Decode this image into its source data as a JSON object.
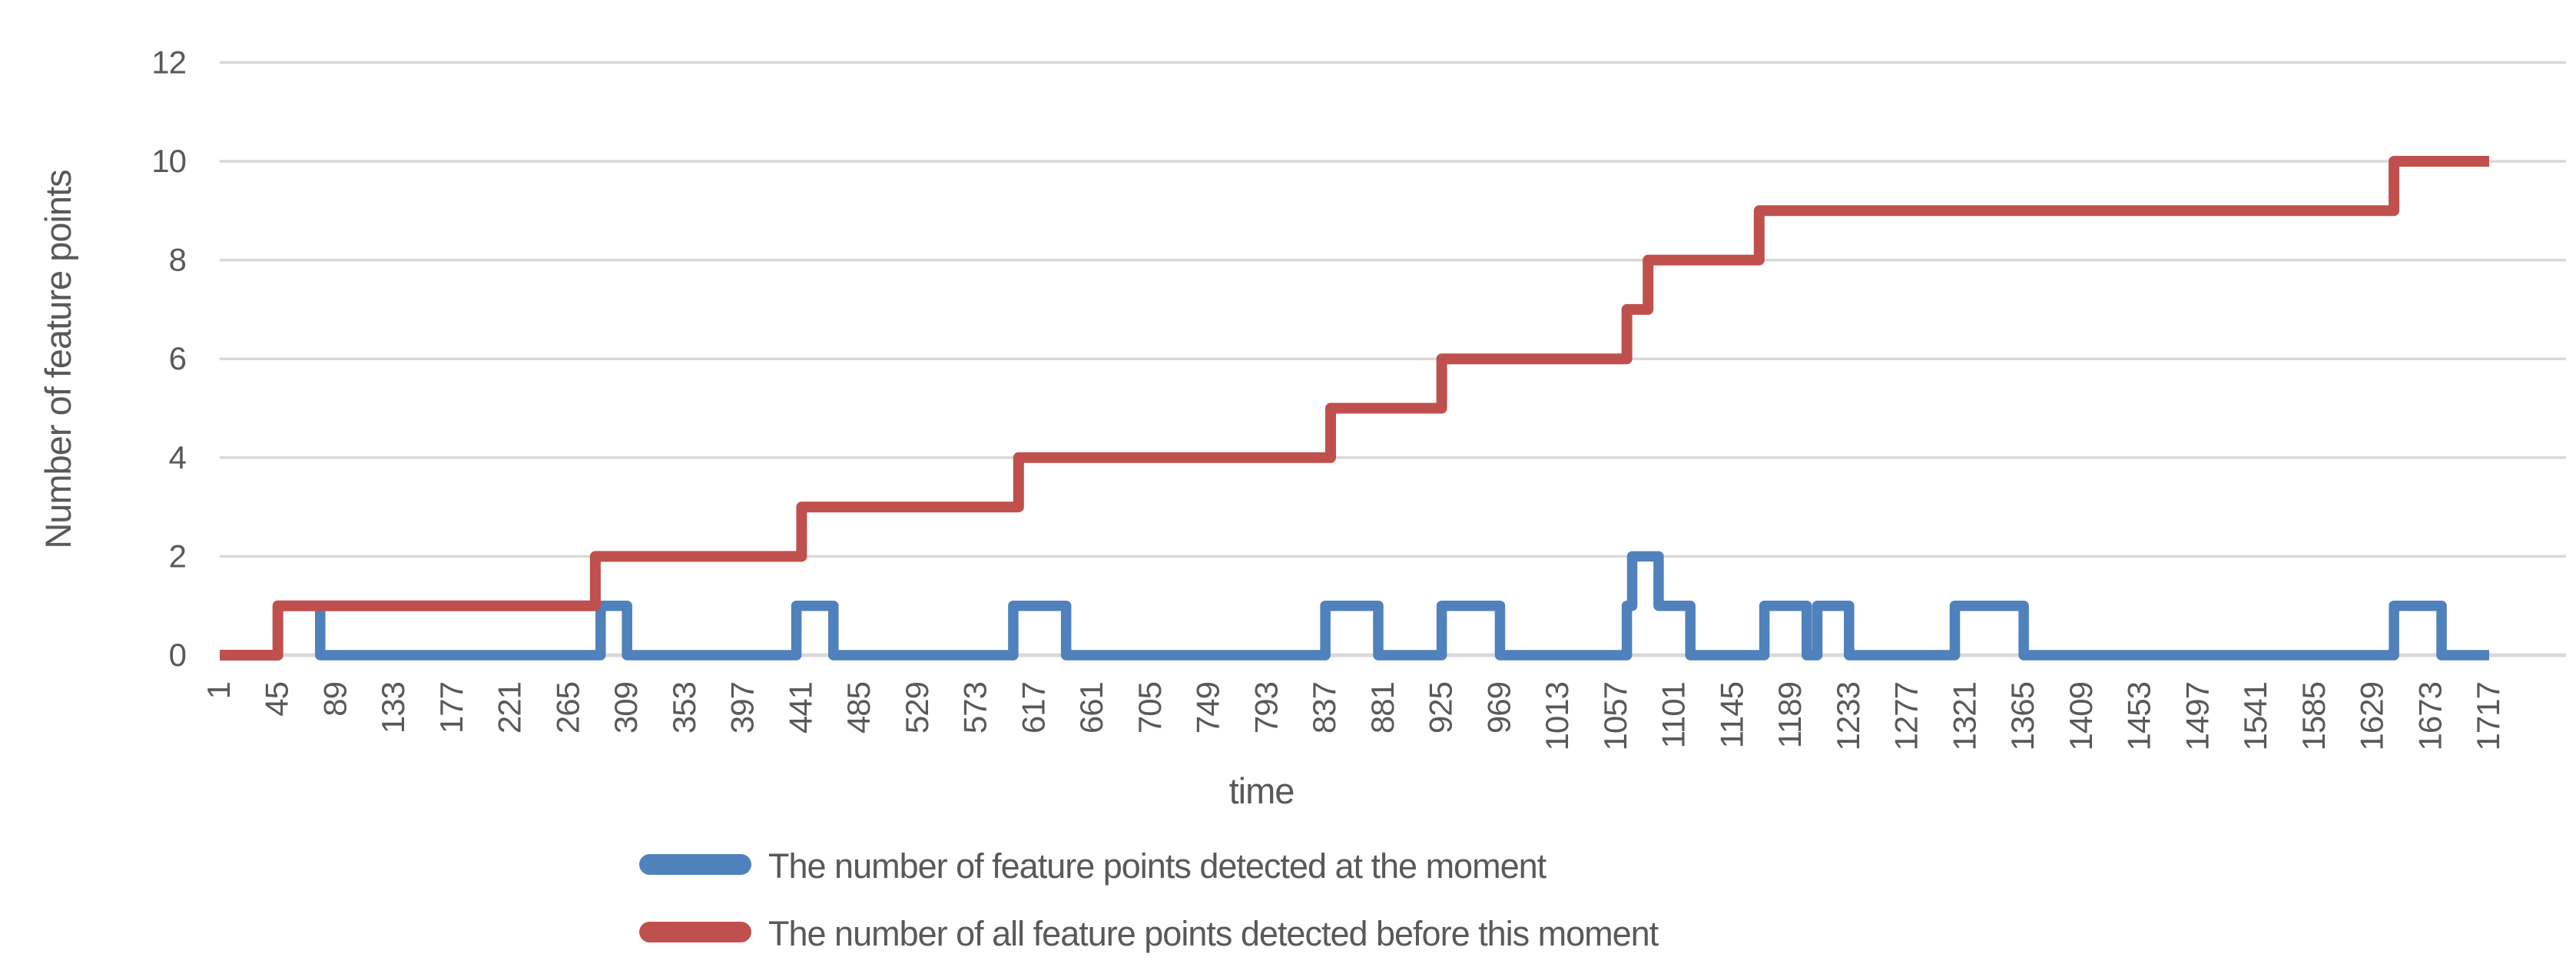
{
  "chart_data": {
    "type": "line",
    "title": "",
    "xlabel": "time",
    "ylabel": "Number of feature points",
    "xlim": [
      1,
      1717
    ],
    "ylim": [
      0,
      12
    ],
    "grid": true,
    "legend_position": "bottom-left",
    "x_tick_step": 44,
    "x_tick_labels": [
      "1",
      "45",
      "89",
      "133",
      "177",
      "221",
      "265",
      "309",
      "353",
      "397",
      "441",
      "485",
      "529",
      "573",
      "617",
      "661",
      "705",
      "749",
      "793",
      "837",
      "881",
      "925",
      "969",
      "1013",
      "1057",
      "1101",
      "1145",
      "1189",
      "1233",
      "1277",
      "1321",
      "1365",
      "1409",
      "1453",
      "1497",
      "1541",
      "1585",
      "1629",
      "1673",
      "1717"
    ],
    "y_ticks": [
      0,
      2,
      4,
      6,
      8,
      10,
      12
    ],
    "series": [
      {
        "name": "The number of feature points detected at the moment",
        "color": "#4F81BD",
        "style": "step-after",
        "points": [
          [
            1,
            0
          ],
          [
            45,
            1
          ],
          [
            77,
            0
          ],
          [
            289,
            1
          ],
          [
            309,
            0
          ],
          [
            437,
            1
          ],
          [
            465,
            0
          ],
          [
            601,
            1
          ],
          [
            641,
            0
          ],
          [
            837,
            1
          ],
          [
            877,
            0
          ],
          [
            925,
            1
          ],
          [
            969,
            0
          ],
          [
            1065,
            1
          ],
          [
            1069,
            2
          ],
          [
            1089,
            1
          ],
          [
            1113,
            0
          ],
          [
            1169,
            1
          ],
          [
            1201,
            0
          ],
          [
            1209,
            1
          ],
          [
            1233,
            0
          ],
          [
            1313,
            1
          ],
          [
            1365,
            0
          ],
          [
            1645,
            1
          ],
          [
            1681,
            0
          ],
          [
            1717,
            0
          ]
        ]
      },
      {
        "name": "The number of all feature points detected before this moment",
        "color": "#C0504D",
        "style": "step-after",
        "points": [
          [
            1,
            0
          ],
          [
            45,
            1
          ],
          [
            285,
            2
          ],
          [
            441,
            3
          ],
          [
            605,
            4
          ],
          [
            841,
            5
          ],
          [
            925,
            6
          ],
          [
            1065,
            7
          ],
          [
            1081,
            8
          ],
          [
            1165,
            9
          ],
          [
            1645,
            10
          ],
          [
            1717,
            10
          ]
        ]
      }
    ]
  },
  "colors": {
    "grid": "#D9D9D9",
    "axis": "#D9D9D9",
    "text": "#595959",
    "background": "#FFFFFF"
  }
}
